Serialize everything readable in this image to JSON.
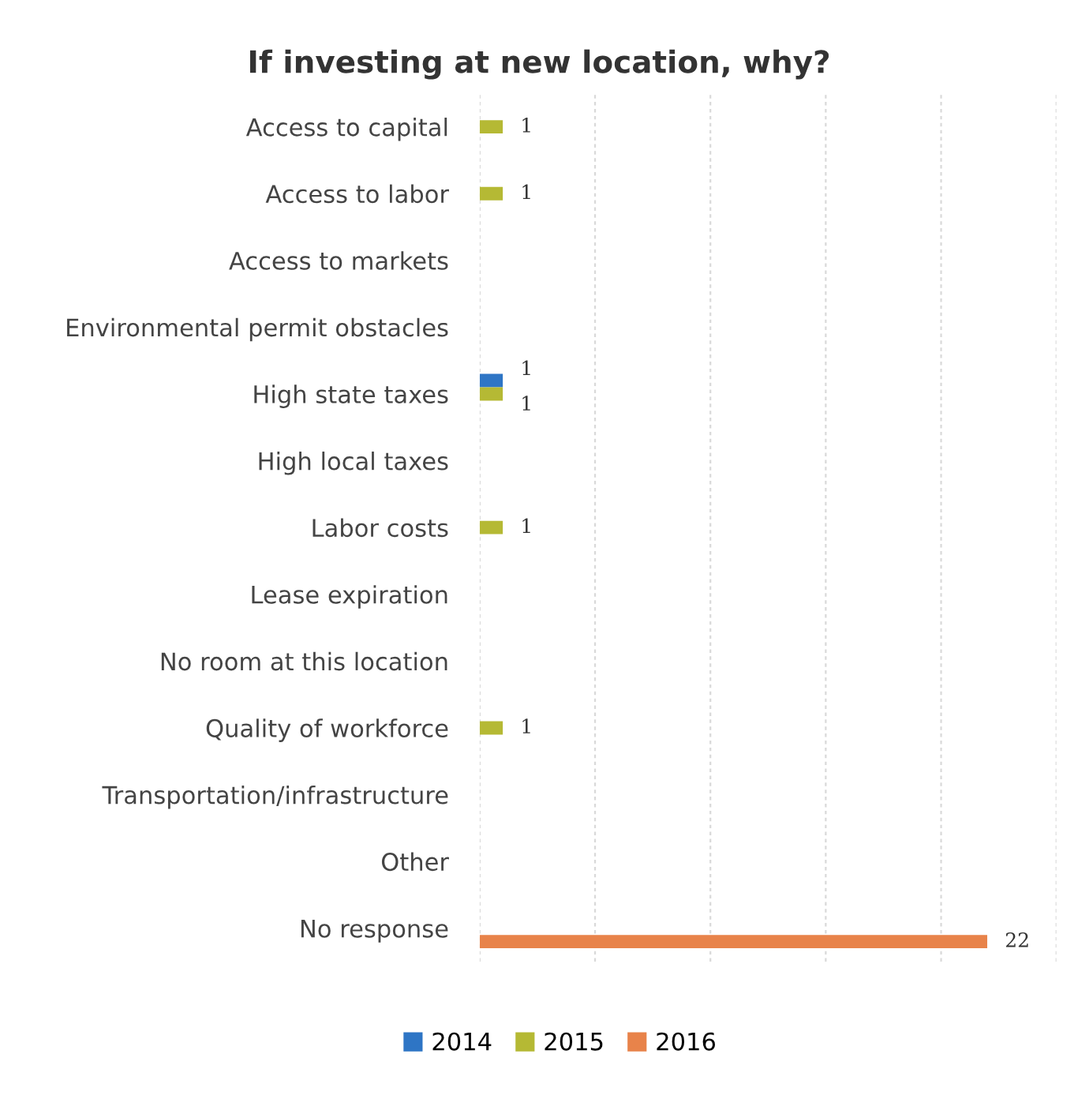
{
  "chart_data": {
    "type": "bar",
    "orientation": "horizontal",
    "title": "If investing at new location, why?",
    "categories": [
      "Access to capital",
      "Access to labor",
      "Access to markets",
      "Environmental permit obstacles",
      "High state taxes",
      "High local taxes",
      "Labor costs",
      "Lease expiration",
      "No room at this location",
      "Quality of workforce",
      "Transportation/infrastructure",
      "Other",
      "No response"
    ],
    "series": [
      {
        "name": "2014",
        "color": "#2e75c5",
        "values": [
          null,
          null,
          null,
          null,
          1,
          null,
          null,
          null,
          null,
          null,
          null,
          null,
          null
        ]
      },
      {
        "name": "2015",
        "color": "#b5b934",
        "values": [
          1,
          1,
          null,
          null,
          1,
          null,
          1,
          null,
          null,
          1,
          null,
          null,
          null
        ]
      },
      {
        "name": "2016",
        "color": "#e8834a",
        "values": [
          null,
          null,
          null,
          null,
          null,
          null,
          null,
          null,
          null,
          null,
          null,
          null,
          22
        ]
      }
    ],
    "xlim": [
      0,
      25
    ],
    "xticks": [
      {
        "value": 0,
        "label": null
      },
      {
        "value": 5,
        "label": null
      },
      {
        "value": 10,
        "label": null
      },
      {
        "value": 15,
        "label": null
      },
      {
        "value": 20,
        "label": null
      },
      {
        "value": 25,
        "label": null
      }
    ],
    "grid": "x",
    "legend": "bottom",
    "data_labels": true,
    "tick_labels": "y"
  }
}
